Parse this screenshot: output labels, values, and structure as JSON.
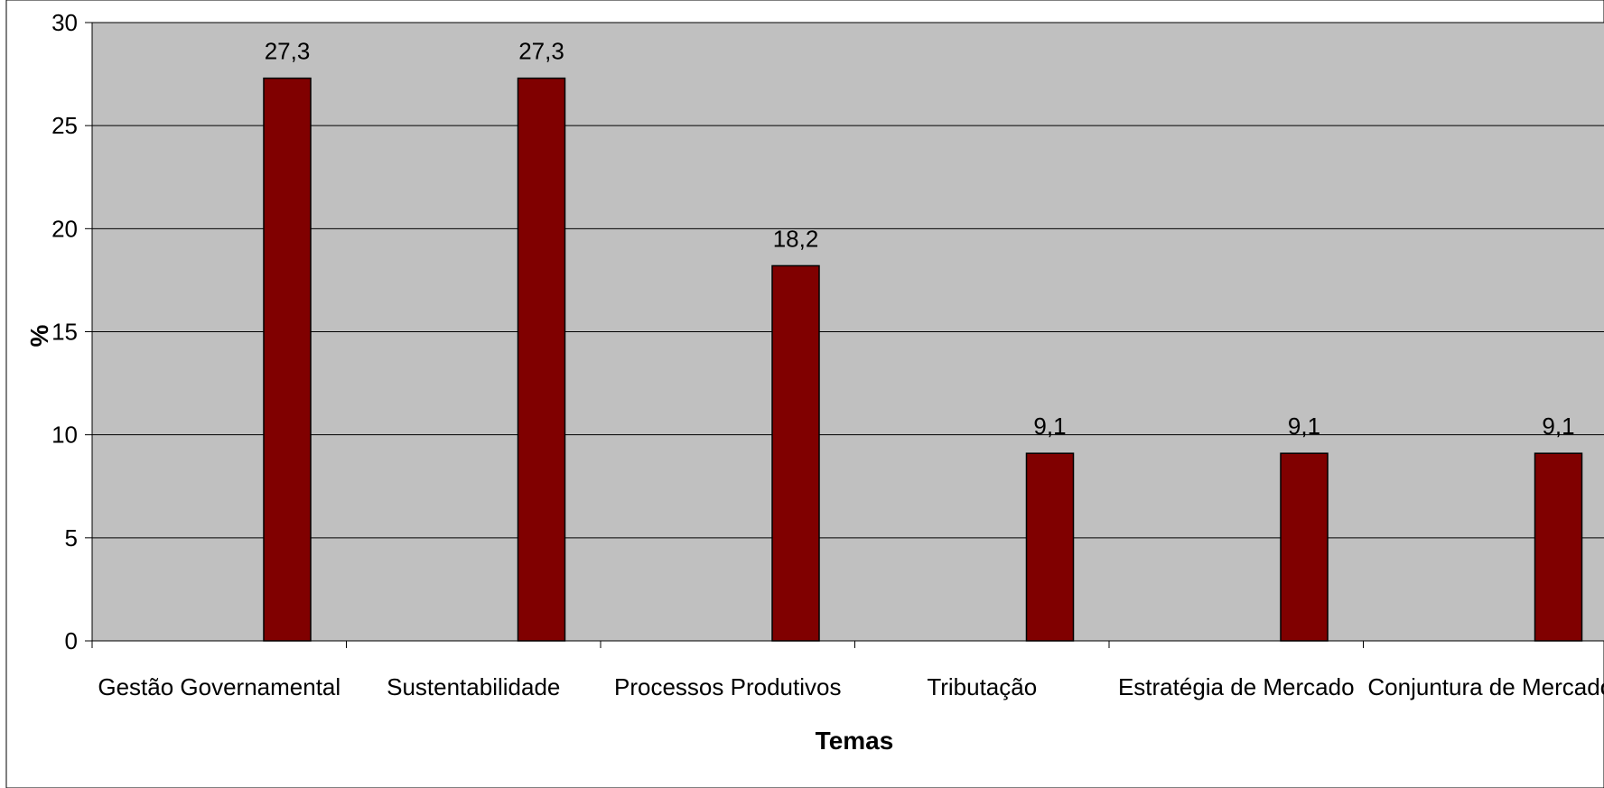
{
  "chart_data": {
    "type": "bar",
    "categories": [
      "Gestão Governamental",
      "Sustentabilidade",
      "Processos Produtivos",
      "Tributação",
      "Estratégia de Mercado",
      "Conjuntura de Mercado"
    ],
    "values": [
      27.3,
      27.3,
      18.2,
      9.1,
      9.1,
      9.1
    ],
    "data_labels": [
      "27,3",
      "27,3",
      "18,2",
      "9,1",
      "9,1",
      "9,1"
    ],
    "yticks": [
      "0",
      "5",
      "10",
      "15",
      "20",
      "25",
      "30"
    ],
    "ylim": [
      0,
      30
    ],
    "xlabel": "Temas",
    "ylabel": "%",
    "grid": true,
    "colors": {
      "bar": "#800000",
      "plot_background": "#c0c0c0",
      "gridline": "#000000"
    }
  }
}
